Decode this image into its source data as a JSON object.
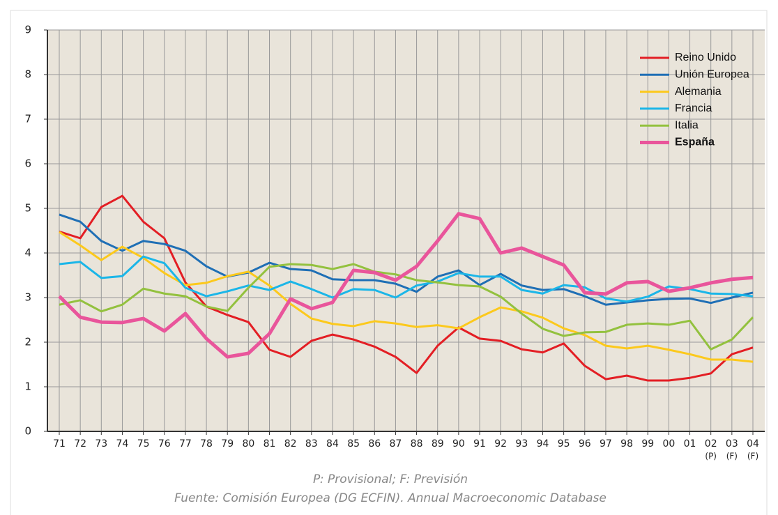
{
  "chart_data": {
    "type": "line",
    "categories": [
      "71",
      "72",
      "73",
      "74",
      "75",
      "76",
      "77",
      "78",
      "79",
      "80",
      "81",
      "82",
      "83",
      "84",
      "85",
      "86",
      "87",
      "88",
      "89",
      "90",
      "91",
      "92",
      "93",
      "94",
      "95",
      "96",
      "97",
      "98",
      "99",
      "00",
      "01",
      "02",
      "03",
      "04"
    ],
    "category_sublabels": [
      null,
      null,
      null,
      null,
      null,
      null,
      null,
      null,
      null,
      null,
      null,
      null,
      null,
      null,
      null,
      null,
      null,
      null,
      null,
      null,
      null,
      null,
      null,
      null,
      null,
      null,
      null,
      null,
      null,
      null,
      null,
      "(P)",
      "(F)",
      "(F)"
    ],
    "ylim": [
      0,
      9
    ],
    "yticks": [
      0,
      1,
      2,
      3,
      4,
      5,
      6,
      7,
      8,
      9
    ],
    "grid": true,
    "legend": "top-right",
    "notes": [
      "P: Provisional; F: Previsión",
      "Fuente: Comisión Europea (DG ECFIN). Annual Macroeconomic Database"
    ],
    "series": [
      {
        "name": "Reino Unido",
        "color": "#e31e24",
        "line_width": 3,
        "values": [
          4.48,
          4.33,
          5.03,
          5.28,
          4.7,
          4.33,
          3.34,
          2.8,
          2.61,
          2.45,
          1.83,
          1.67,
          2.03,
          2.17,
          2.06,
          1.9,
          1.67,
          1.31,
          1.92,
          2.33,
          2.08,
          2.03,
          1.84,
          1.77,
          1.97,
          1.47,
          1.17,
          1.25,
          1.14,
          1.14,
          1.2,
          1.3,
          1.73,
          1.88
        ]
      },
      {
        "name": "Unión Europea",
        "color": "#1f6fb5",
        "line_width": 3,
        "values": [
          4.86,
          4.7,
          4.27,
          4.05,
          4.27,
          4.2,
          4.05,
          3.7,
          3.47,
          3.56,
          3.78,
          3.64,
          3.61,
          3.41,
          3.39,
          3.39,
          3.31,
          3.13,
          3.47,
          3.61,
          3.28,
          3.53,
          3.27,
          3.17,
          3.19,
          3.03,
          2.84,
          2.89,
          2.94,
          2.97,
          2.98,
          2.88,
          3.0,
          3.11
        ]
      },
      {
        "name": "Alemania",
        "color": "#fcc91c",
        "line_width": 3,
        "values": [
          4.47,
          4.17,
          3.84,
          4.14,
          3.89,
          3.55,
          3.28,
          3.33,
          3.48,
          3.58,
          3.27,
          2.86,
          2.53,
          2.41,
          2.36,
          2.47,
          2.42,
          2.34,
          2.38,
          2.31,
          2.56,
          2.78,
          2.69,
          2.55,
          2.31,
          2.16,
          1.92,
          1.86,
          1.92,
          1.83,
          1.73,
          1.61,
          1.61,
          1.56
        ]
      },
      {
        "name": "Francia",
        "color": "#1bb6e8",
        "line_width": 3,
        "values": [
          3.75,
          3.8,
          3.44,
          3.48,
          3.92,
          3.77,
          3.22,
          3.03,
          3.14,
          3.27,
          3.17,
          3.36,
          3.19,
          3.0,
          3.19,
          3.17,
          3.0,
          3.27,
          3.36,
          3.55,
          3.47,
          3.47,
          3.17,
          3.09,
          3.28,
          3.23,
          2.98,
          2.91,
          3.02,
          3.25,
          3.19,
          3.09,
          3.08,
          3.03
        ]
      },
      {
        "name": "Italia",
        "color": "#93c13e",
        "line_width": 3,
        "values": [
          2.84,
          2.94,
          2.69,
          2.84,
          3.2,
          3.09,
          3.03,
          2.8,
          2.7,
          3.22,
          3.69,
          3.75,
          3.73,
          3.64,
          3.75,
          3.58,
          3.52,
          3.39,
          3.34,
          3.28,
          3.25,
          3.02,
          2.64,
          2.3,
          2.14,
          2.22,
          2.23,
          2.39,
          2.42,
          2.39,
          2.48,
          1.84,
          2.06,
          2.56
        ]
      },
      {
        "name": "España",
        "color": "#e9559b",
        "line_width": 5,
        "font_weight": "bold",
        "values": [
          3.03,
          2.56,
          2.45,
          2.44,
          2.53,
          2.25,
          2.64,
          2.08,
          1.67,
          1.75,
          2.19,
          2.97,
          2.75,
          2.89,
          3.61,
          3.56,
          3.39,
          3.7,
          4.27,
          4.88,
          4.77,
          4.0,
          4.11,
          3.92,
          3.73,
          3.11,
          3.08,
          3.33,
          3.36,
          3.14,
          3.22,
          3.33,
          3.41,
          3.45
        ]
      }
    ]
  }
}
